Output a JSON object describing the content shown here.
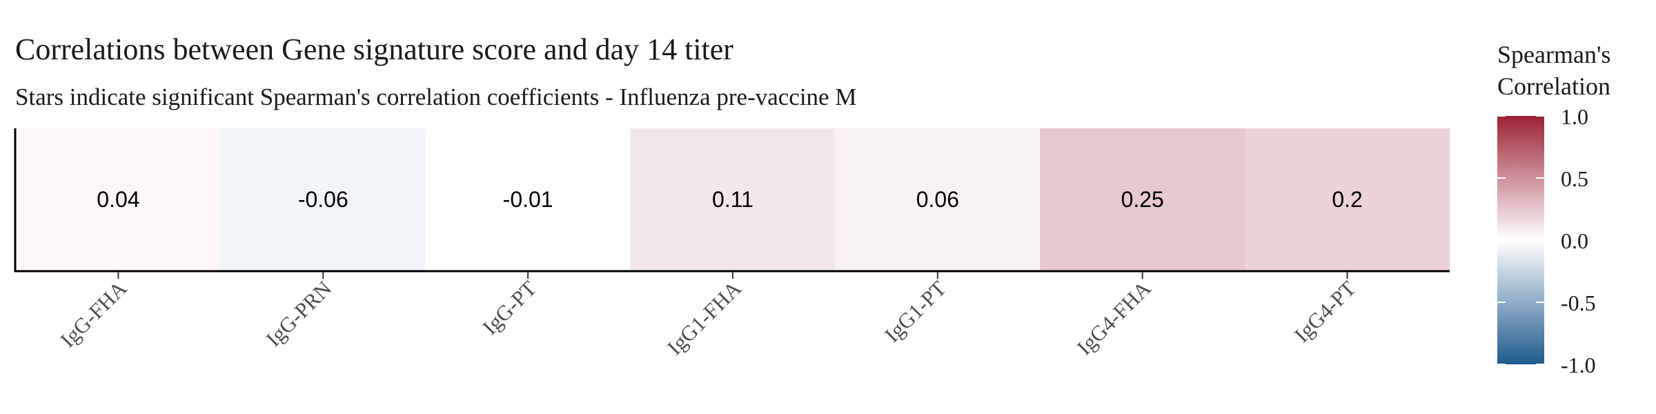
{
  "chart_data": {
    "type": "heatmap",
    "title": "Correlations between Gene signature score and day 14 titer",
    "subtitle": "Stars indicate significant Spearman's correlation coefficients - Influenza pre-vaccine M",
    "categories": [
      "IgG-FHA",
      "IgG-PRN",
      "IgG-PT",
      "IgG1-FHA",
      "IgG1-PT",
      "IgG4-FHA",
      "IgG4-PT"
    ],
    "values": [
      0.04,
      -0.06,
      -0.01,
      0.11,
      0.06,
      0.25,
      0.2
    ],
    "value_labels": [
      "0.04",
      "-0.06",
      "-0.01",
      "0.11",
      "0.06",
      "0.25",
      "0.2"
    ],
    "legend": {
      "title_line1": "Spearman's",
      "title_line2": "Correlation",
      "ticks": [
        1.0,
        0.5,
        0.0,
        -0.5,
        -1.0
      ],
      "tick_labels": [
        "1.0",
        "0.5",
        "0.0",
        "-0.5",
        "-1.0"
      ],
      "range": [
        -1,
        1
      ],
      "placement": "right"
    },
    "colors": {
      "low": "#1f5a8c",
      "mid": "#ffffff",
      "high": "#9b2335",
      "axis": "#000000",
      "text": "#1a1a1a"
    },
    "grid": false
  }
}
